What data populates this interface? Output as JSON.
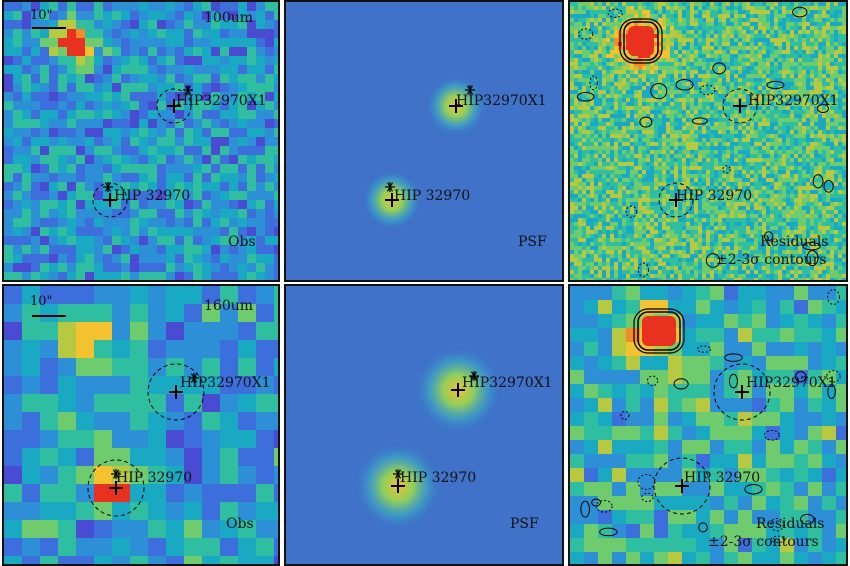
{
  "panels": [
    {
      "id": "p1",
      "kind": "obs",
      "band_label": "100um",
      "scale_label": "10\"",
      "corner_label": "Obs",
      "sources": [
        {
          "name": "HIP32970X1",
          "has_circle": true,
          "has_star": true
        },
        {
          "name": "HIP 32970",
          "has_circle": true,
          "has_star": true
        }
      ]
    },
    {
      "id": "p2",
      "kind": "psf",
      "corner_label": "PSF",
      "sources": [
        {
          "name": "HIP32970X1",
          "has_circle": false,
          "has_star": true
        },
        {
          "name": "HIP 32970",
          "has_circle": false,
          "has_star": true
        }
      ]
    },
    {
      "id": "p3",
      "kind": "residual",
      "corner_label": "Residuals",
      "corner_label_2": "±2-3σ contours",
      "sources": [
        {
          "name": "HIP32970X1",
          "has_circle": true,
          "has_star": false
        },
        {
          "name": "HIP 32970",
          "has_circle": true,
          "has_star": false
        }
      ]
    },
    {
      "id": "p4",
      "kind": "obs",
      "band_label": "160um",
      "scale_label": "10\"",
      "corner_label": "Obs",
      "sources": [
        {
          "name": "HIP32970X1",
          "has_circle": true,
          "has_star": true
        },
        {
          "name": "HIP 32970",
          "has_circle": true,
          "has_star": true
        }
      ]
    },
    {
      "id": "p5",
      "kind": "psf",
      "corner_label": "PSF",
      "sources": [
        {
          "name": "HIP32970X1",
          "has_circle": false,
          "has_star": true
        },
        {
          "name": "HIP 32970",
          "has_circle": false,
          "has_star": true
        }
      ]
    },
    {
      "id": "p6",
      "kind": "residual",
      "corner_label": "Residuals",
      "corner_label_2": "±2-3σ contours",
      "sources": [
        {
          "name": "HIP32970X1",
          "has_circle": true,
          "has_star": false
        },
        {
          "name": "HIP 32970",
          "has_circle": true,
          "has_star": false
        }
      ]
    }
  ],
  "colormap": [
    "#3d26a8",
    "#4a4bd3",
    "#3c6fdb",
    "#2d8fd5",
    "#19a9c2",
    "#2fbfa0",
    "#6fcc6e",
    "#b7c940",
    "#f2c22f",
    "#f58a2a",
    "#e8321f"
  ],
  "contour_color": "#000000"
}
